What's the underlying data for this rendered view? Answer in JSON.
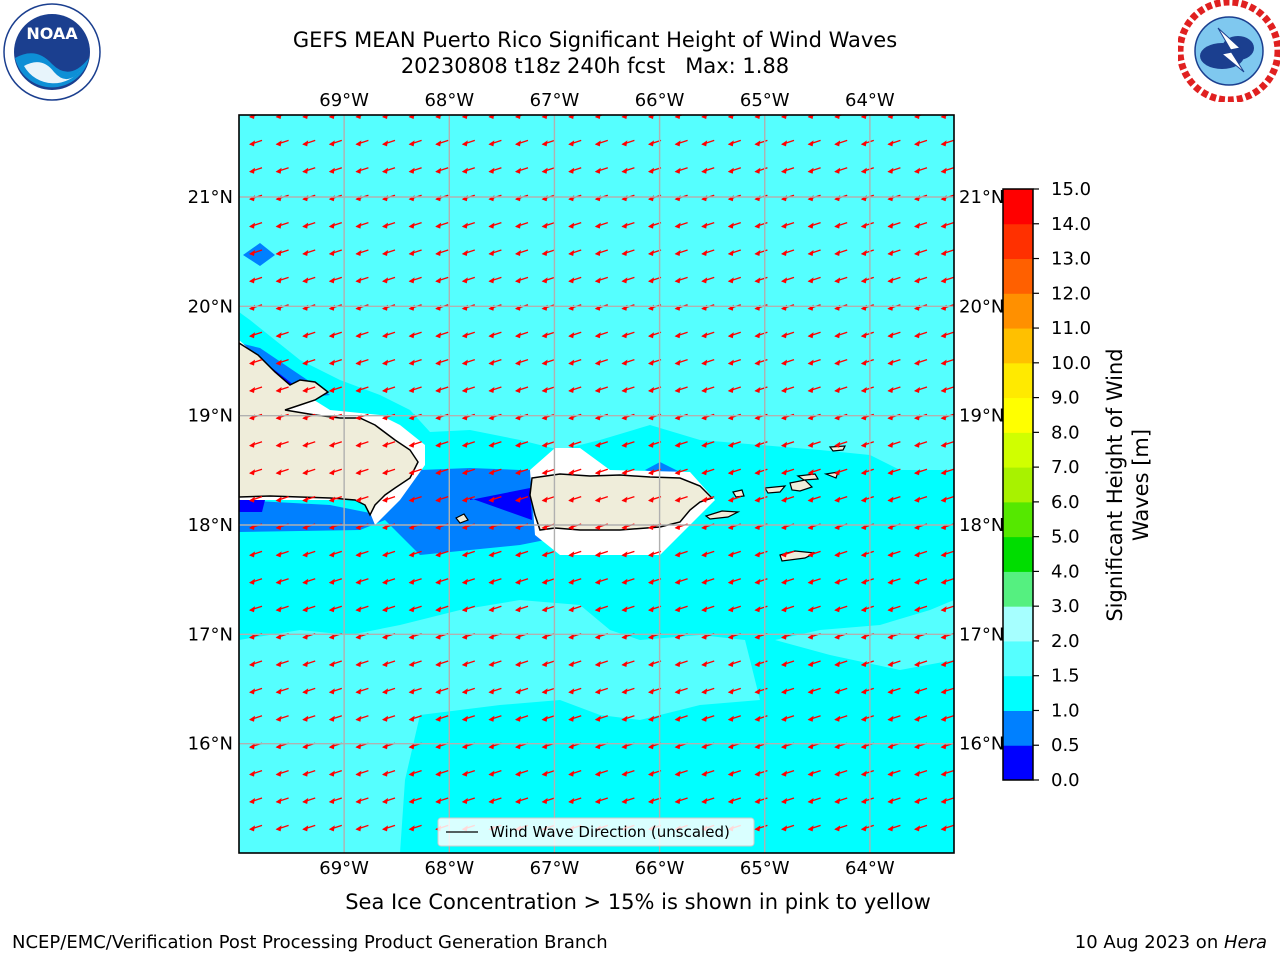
{
  "header": {
    "title_line1": "GEFS MEAN Puerto Rico Significant Height of Wind Waves",
    "title_line2": "20230808 t18z 240h fcst   Max: 1.88"
  },
  "logos": {
    "left": {
      "name": "noaa-logo",
      "text": "NOAA"
    },
    "right": {
      "name": "nws-logo"
    }
  },
  "map": {
    "lon_labels": [
      "69°W",
      "68°W",
      "67°W",
      "66°W",
      "65°W",
      "64°W"
    ],
    "lon_values": [
      -69,
      -68,
      -67,
      -66,
      -65,
      -64
    ],
    "lat_labels": [
      "21°N",
      "20°N",
      "19°N",
      "18°N",
      "17°N",
      "16°N"
    ],
    "lat_values": [
      21,
      20,
      19,
      18,
      17,
      16
    ],
    "lon_range": [
      -70,
      -63.2
    ],
    "lat_range": [
      15,
      21.75
    ],
    "legend_label": "Wind Wave Direction (unscaled)",
    "wave_direction": "toward southwest",
    "colors": {
      "land": "#efedda",
      "sea_1_0_1_5": "#00ffff",
      "sea_1_5_2_0": "#55ffff",
      "sea_0_5_1_0": "#0080ff",
      "sea_0_0_0_5": "#0000ff",
      "arrow": "#ff0000"
    }
  },
  "colorbar": {
    "label": "Significant Height of Wind Waves [m]",
    "ticks": [
      "0.0",
      "0.5",
      "1.0",
      "1.5",
      "2.0",
      "3.0",
      "4.0",
      "5.0",
      "6.0",
      "7.0",
      "8.0",
      "9.0",
      "10.0",
      "11.0",
      "12.0",
      "13.0",
      "14.0",
      "15.0"
    ],
    "colors": [
      "#0000ff",
      "#0080ff",
      "#00ffff",
      "#55ffff",
      "#a6ffff",
      "#55f080",
      "#00dd00",
      "#55e800",
      "#a8f200",
      "#d0ff00",
      "#ffff00",
      "#ffea00",
      "#ffc000",
      "#ff9000",
      "#ff6000",
      "#ff3000",
      "#ff0000"
    ]
  },
  "subtitle": "Sea Ice Concentration > 15% is shown in pink to yellow",
  "footer": {
    "left": "NCEP/EMC/Verification Post Processing Product Generation Branch",
    "right_date": "10 Aug 2023 on ",
    "right_host": "Hera"
  }
}
